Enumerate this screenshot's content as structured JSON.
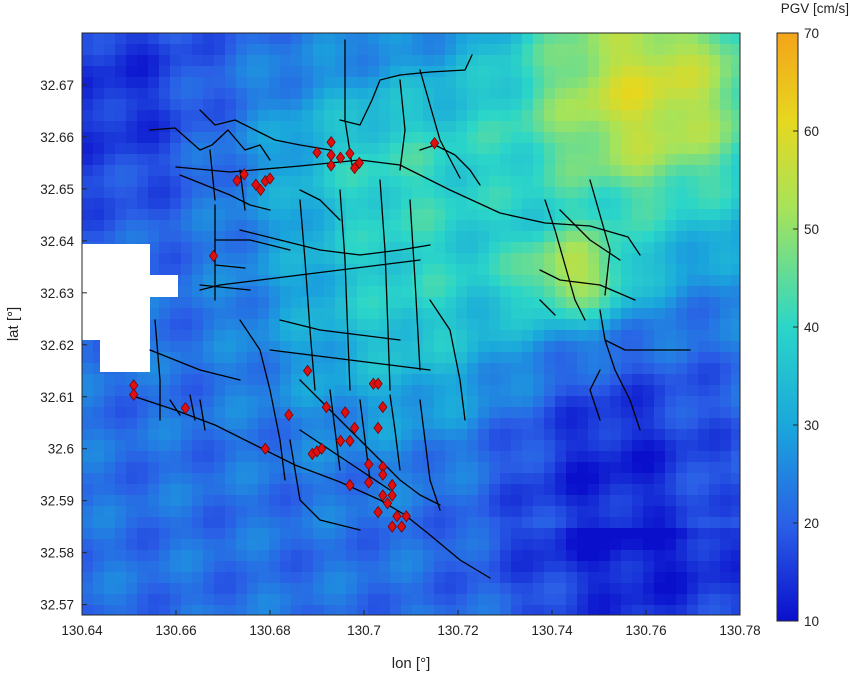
{
  "map": {
    "x_label": "lon [°]",
    "y_label": "lat [°]",
    "x_range": [
      130.64,
      130.78
    ],
    "y_range": [
      32.568,
      32.68
    ],
    "x_ticks": [
      "130.64",
      "130.66",
      "130.68",
      "130.7",
      "130.72",
      "130.74",
      "130.76",
      "130.78"
    ],
    "y_ticks": [
      "32.57",
      "32.58",
      "32.59",
      "32.6",
      "32.61",
      "32.62",
      "32.63",
      "32.64",
      "32.65",
      "32.66",
      "32.67"
    ],
    "colorbar": {
      "title": "PGV [cm/s]",
      "min": 10,
      "max": 70,
      "ticks": [
        "10",
        "20",
        "30",
        "40",
        "50",
        "60",
        "70"
      ],
      "colormap": [
        "#0a0fcc",
        "#2a5ee6",
        "#1aa6dc",
        "#2bd6c8",
        "#a6e35a",
        "#e6d81f",
        "#f4a41a"
      ]
    },
    "network_color": "#000000",
    "site_marker_color": "#e01010",
    "site_marker_shape": "diamond",
    "sites": [
      {
        "lon": 130.651,
        "lat": 32.6122
      },
      {
        "lon": 130.651,
        "lat": 32.6104
      },
      {
        "lon": 130.662,
        "lat": 32.6078
      },
      {
        "lon": 130.668,
        "lat": 32.6371
      },
      {
        "lon": 130.673,
        "lat": 32.6516
      },
      {
        "lon": 130.6745,
        "lat": 32.6528
      },
      {
        "lon": 130.677,
        "lat": 32.6508
      },
      {
        "lon": 130.678,
        "lat": 32.6498
      },
      {
        "lon": 130.679,
        "lat": 32.6515
      },
      {
        "lon": 130.68,
        "lat": 32.652
      },
      {
        "lon": 130.69,
        "lat": 32.657
      },
      {
        "lon": 130.693,
        "lat": 32.659
      },
      {
        "lon": 130.693,
        "lat": 32.6565
      },
      {
        "lon": 130.693,
        "lat": 32.6545
      },
      {
        "lon": 130.695,
        "lat": 32.656
      },
      {
        "lon": 130.697,
        "lat": 32.6568
      },
      {
        "lon": 130.698,
        "lat": 32.654
      },
      {
        "lon": 130.699,
        "lat": 32.655
      },
      {
        "lon": 130.715,
        "lat": 32.6588
      },
      {
        "lon": 130.688,
        "lat": 32.615
      },
      {
        "lon": 130.702,
        "lat": 32.6125
      },
      {
        "lon": 130.703,
        "lat": 32.6125
      },
      {
        "lon": 130.692,
        "lat": 32.608
      },
      {
        "lon": 130.696,
        "lat": 32.607
      },
      {
        "lon": 130.704,
        "lat": 32.608
      },
      {
        "lon": 130.684,
        "lat": 32.6065
      },
      {
        "lon": 130.698,
        "lat": 32.604
      },
      {
        "lon": 130.703,
        "lat": 32.604
      },
      {
        "lon": 130.679,
        "lat": 32.6
      },
      {
        "lon": 130.689,
        "lat": 32.599
      },
      {
        "lon": 130.69,
        "lat": 32.5995
      },
      {
        "lon": 130.691,
        "lat": 32.6
      },
      {
        "lon": 130.695,
        "lat": 32.6015
      },
      {
        "lon": 130.697,
        "lat": 32.6015
      },
      {
        "lon": 130.701,
        "lat": 32.597
      },
      {
        "lon": 130.704,
        "lat": 32.5965
      },
      {
        "lon": 130.704,
        "lat": 32.595
      },
      {
        "lon": 130.697,
        "lat": 32.593
      },
      {
        "lon": 130.701,
        "lat": 32.5935
      },
      {
        "lon": 130.704,
        "lat": 32.591
      },
      {
        "lon": 130.706,
        "lat": 32.591
      },
      {
        "lon": 130.705,
        "lat": 32.5895
      },
      {
        "lon": 130.706,
        "lat": 32.593
      },
      {
        "lon": 130.703,
        "lat": 32.5878
      },
      {
        "lon": 130.707,
        "lat": 32.587
      },
      {
        "lon": 130.709,
        "lat": 32.587
      },
      {
        "lon": 130.706,
        "lat": 32.585
      },
      {
        "lon": 130.708,
        "lat": 32.585
      }
    ]
  }
}
